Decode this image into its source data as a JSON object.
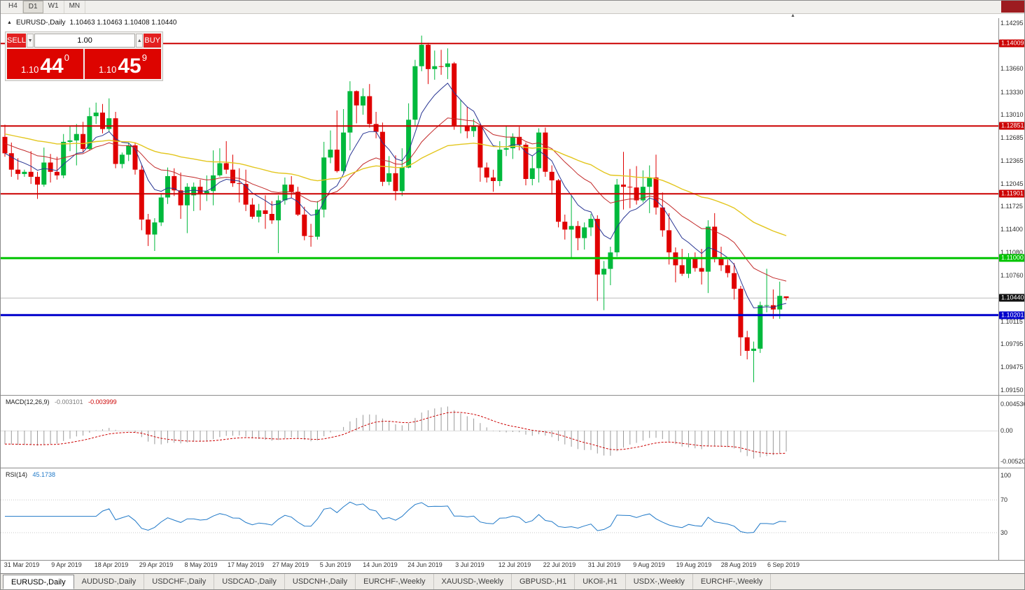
{
  "window": {
    "timeframes": [
      "H4",
      "D1",
      "W1",
      "MN"
    ],
    "active_timeframe": "D1"
  },
  "chart_header": {
    "symbol": "EURUSD-,Daily",
    "ohlc": "1.10463 1.10463 1.10408 1.10440"
  },
  "trade_panel": {
    "sell_label": "SELL",
    "buy_label": "BUY",
    "volume": "1.00",
    "sell_price": {
      "prefix": "1.10",
      "big": "44",
      "sup": "0"
    },
    "buy_price": {
      "prefix": "1.10",
      "big": "45",
      "sup": "9"
    }
  },
  "chart_data": {
    "type": "candlestick",
    "symbol": "EURUSD",
    "timeframe": "Daily",
    "current_price": 1.1044,
    "price_range": [
      1.0915,
      1.14295
    ],
    "up_color": "#00b93c",
    "down_color": "#e00000",
    "levels": [
      {
        "price": 1.14009,
        "color": "#cc0000",
        "width": 2
      },
      {
        "price": 1.12851,
        "color": "#cc0000",
        "width": 2
      },
      {
        "price": 1.11901,
        "color": "#cc0000",
        "width": 2
      },
      {
        "price": 1.11,
        "color": "#00c400",
        "width": 3
      },
      {
        "price": 1.10201,
        "color": "#0000cc",
        "width": 3
      }
    ],
    "price_axis": [
      {
        "text": "1.14295",
        "price": 1.14295,
        "style": "plain"
      },
      {
        "text": "1.14009",
        "price": 1.14009,
        "style": "tag",
        "bg": "#cc0000"
      },
      {
        "text": "1.13660",
        "price": 1.1366,
        "style": "plain"
      },
      {
        "text": "1.13330",
        "price": 1.1333,
        "style": "plain"
      },
      {
        "text": "1.13010",
        "price": 1.1301,
        "style": "plain"
      },
      {
        "text": "1.12851",
        "price": 1.12851,
        "style": "tag",
        "bg": "#cc0000"
      },
      {
        "text": "1.12685",
        "price": 1.12685,
        "style": "plain"
      },
      {
        "text": "1.12365",
        "price": 1.12365,
        "style": "plain"
      },
      {
        "text": "1.12045",
        "price": 1.12045,
        "style": "plain"
      },
      {
        "text": "1.11901",
        "price": 1.11901,
        "style": "tag",
        "bg": "#cc0000"
      },
      {
        "text": "1.11725",
        "price": 1.11725,
        "style": "plain"
      },
      {
        "text": "1.11400",
        "price": 1.114,
        "style": "plain"
      },
      {
        "text": "1.11080",
        "price": 1.1108,
        "style": "plain"
      },
      {
        "text": "1.11000",
        "price": 1.11,
        "style": "tag",
        "bg": "#00c400"
      },
      {
        "text": "1.10760",
        "price": 1.1076,
        "style": "plain"
      },
      {
        "text": "1.10440",
        "price": 1.1044,
        "style": "tag",
        "bg": "#111111"
      },
      {
        "text": "1.10201",
        "price": 1.10201,
        "style": "tag",
        "bg": "#0000cc"
      },
      {
        "text": "1.10115",
        "price": 1.10115,
        "style": "plain"
      },
      {
        "text": "1.09795",
        "price": 1.09795,
        "style": "plain"
      },
      {
        "text": "1.09475",
        "price": 1.09475,
        "style": "plain"
      },
      {
        "text": "1.09150",
        "price": 1.0915,
        "style": "plain"
      }
    ],
    "date_axis": [
      "31 Mar 2019",
      "9 Apr 2019",
      "18 Apr 2019",
      "29 Apr 2019",
      "8 May 2019",
      "17 May 2019",
      "27 May 2019",
      "5 Jun 2019",
      "14 Jun 2019",
      "24 Jun 2019",
      "3 Jul 2019",
      "12 Jul 2019",
      "22 Jul 2019",
      "31 Jul 2019",
      "9 Aug 2019",
      "19 Aug 2019",
      "28 Aug 2019",
      "6 Sep 2019"
    ],
    "candles": [
      [
        1.127,
        1.1287,
        1.1242,
        1.1247
      ],
      [
        1.1247,
        1.1262,
        1.1214,
        1.1224
      ],
      [
        1.1224,
        1.124,
        1.121,
        1.1218
      ],
      [
        1.1218,
        1.1224,
        1.1214,
        1.1221
      ],
      [
        1.1221,
        1.125,
        1.1204,
        1.1214
      ],
      [
        1.1214,
        1.1221,
        1.1183,
        1.1203
      ],
      [
        1.1203,
        1.1255,
        1.12,
        1.1234
      ],
      [
        1.1234,
        1.1246,
        1.1206,
        1.1221
      ],
      [
        1.1221,
        1.1242,
        1.121,
        1.1216
      ],
      [
        1.1216,
        1.1274,
        1.1212,
        1.1263
      ],
      [
        1.1263,
        1.1285,
        1.125,
        1.1265
      ],
      [
        1.1265,
        1.1288,
        1.123,
        1.1274
      ],
      [
        1.1274,
        1.1291,
        1.1248,
        1.1253
      ],
      [
        1.1253,
        1.1311,
        1.1251,
        1.1299
      ],
      [
        1.1299,
        1.1318,
        1.1288,
        1.1304
      ],
      [
        1.1304,
        1.1316,
        1.1275,
        1.1281
      ],
      [
        1.1281,
        1.1324,
        1.1277,
        1.1296
      ],
      [
        1.1296,
        1.1305,
        1.1226,
        1.1232
      ],
      [
        1.1232,
        1.1248,
        1.1226,
        1.1245
      ],
      [
        1.1245,
        1.1262,
        1.1236,
        1.1258
      ],
      [
        1.1258,
        1.1262,
        1.1217,
        1.1224
      ],
      [
        1.1224,
        1.123,
        1.1139,
        1.1154
      ],
      [
        1.1154,
        1.1162,
        1.1117,
        1.1133
      ],
      [
        1.1133,
        1.1156,
        1.111,
        1.115
      ],
      [
        1.115,
        1.119,
        1.1145,
        1.1185
      ],
      [
        1.1185,
        1.1227,
        1.1176,
        1.1215
      ],
      [
        1.1215,
        1.1226,
        1.1187,
        1.1195
      ],
      [
        1.1195,
        1.122,
        1.1155,
        1.1174
      ],
      [
        1.1174,
        1.1205,
        1.1135,
        1.12
      ],
      [
        1.1188,
        1.1206,
        1.1166,
        1.12
      ],
      [
        1.12,
        1.121,
        1.1167,
        1.119
      ],
      [
        1.119,
        1.1216,
        1.118,
        1.1194
      ],
      [
        1.1194,
        1.1251,
        1.1174,
        1.1216
      ],
      [
        1.1216,
        1.1254,
        1.1214,
        1.1233
      ],
      [
        1.1233,
        1.1264,
        1.1218,
        1.1224
      ],
      [
        1.1224,
        1.1245,
        1.12,
        1.1205
      ],
      [
        1.1205,
        1.1226,
        1.1178,
        1.1204
      ],
      [
        1.1204,
        1.1224,
        1.1166,
        1.1175
      ],
      [
        1.1175,
        1.1184,
        1.1155,
        1.1158
      ],
      [
        1.1158,
        1.1176,
        1.115,
        1.1167
      ],
      [
        1.1167,
        1.1188,
        1.1141,
        1.1162
      ],
      [
        1.1162,
        1.118,
        1.1148,
        1.1153
      ],
      [
        1.1153,
        1.1188,
        1.1107,
        1.1181
      ],
      [
        1.1181,
        1.1213,
        1.1175,
        1.1203
      ],
      [
        1.1203,
        1.1215,
        1.1184,
        1.1193
      ],
      [
        1.1193,
        1.12,
        1.1159,
        1.1161
      ],
      [
        1.1161,
        1.1172,
        1.1125,
        1.1131
      ],
      [
        1.1131,
        1.1148,
        1.1116,
        1.113
      ],
      [
        1.113,
        1.118,
        1.1126,
        1.1168
      ],
      [
        1.1168,
        1.1263,
        1.1157,
        1.1241
      ],
      [
        1.1241,
        1.1279,
        1.1233,
        1.1252
      ],
      [
        1.1252,
        1.1307,
        1.122,
        1.1222
      ],
      [
        1.1222,
        1.1309,
        1.1219,
        1.1276
      ],
      [
        1.1276,
        1.1348,
        1.1251,
        1.1334
      ],
      [
        1.1334,
        1.1335,
        1.1289,
        1.1314
      ],
      [
        1.1314,
        1.1338,
        1.1301,
        1.1327
      ],
      [
        1.1327,
        1.1344,
        1.1283,
        1.1288
      ],
      [
        1.1288,
        1.1305,
        1.1268,
        1.1277
      ],
      [
        1.1277,
        1.129,
        1.1201,
        1.1207
      ],
      [
        1.1207,
        1.1243,
        1.1202,
        1.1219
      ],
      [
        1.1219,
        1.1244,
        1.1181,
        1.1194
      ],
      [
        1.1194,
        1.1254,
        1.1187,
        1.1227
      ],
      [
        1.1227,
        1.1317,
        1.1226,
        1.1294
      ],
      [
        1.1294,
        1.1378,
        1.1286,
        1.1369
      ],
      [
        1.1369,
        1.1412,
        1.1362,
        1.1399
      ],
      [
        1.1399,
        1.1402,
        1.1344,
        1.1365
      ],
      [
        1.1365,
        1.1391,
        1.135,
        1.1369
      ],
      [
        1.1369,
        1.1392,
        1.1357,
        1.1368
      ],
      [
        1.1368,
        1.1394,
        1.1351,
        1.1373
      ],
      [
        1.1373,
        1.1375,
        1.128,
        1.1285
      ],
      [
        1.1285,
        1.1322,
        1.1275,
        1.1286
      ],
      [
        1.1286,
        1.1312,
        1.1268,
        1.1278
      ],
      [
        1.1278,
        1.1295,
        1.127,
        1.1285
      ],
      [
        1.1285,
        1.1289,
        1.1207,
        1.1227
      ],
      [
        1.1227,
        1.1234,
        1.1206,
        1.1213
      ],
      [
        1.1213,
        1.1224,
        1.1193,
        1.1208
      ],
      [
        1.1208,
        1.1264,
        1.1201,
        1.1252
      ],
      [
        1.1252,
        1.1286,
        1.1243,
        1.1254
      ],
      [
        1.1254,
        1.1275,
        1.1239,
        1.127
      ],
      [
        1.127,
        1.1284,
        1.1251,
        1.1259
      ],
      [
        1.1259,
        1.1262,
        1.1202,
        1.1211
      ],
      [
        1.1211,
        1.1243,
        1.1202,
        1.1226
      ],
      [
        1.1226,
        1.1282,
        1.1206,
        1.1276
      ],
      [
        1.1276,
        1.1283,
        1.1214,
        1.1221
      ],
      [
        1.1221,
        1.123,
        1.1189,
        1.1209
      ],
      [
        1.1209,
        1.1211,
        1.1143,
        1.1151
      ],
      [
        1.1151,
        1.1161,
        1.1126,
        1.114
      ],
      [
        1.114,
        1.1187,
        1.1101,
        1.1145
      ],
      [
        1.1145,
        1.1152,
        1.1111,
        1.1128
      ],
      [
        1.1128,
        1.115,
        1.1112,
        1.1143
      ],
      [
        1.1143,
        1.1162,
        1.1131,
        1.1155
      ],
      [
        1.1155,
        1.116,
        1.104,
        1.1077
      ],
      [
        1.1077,
        1.1096,
        1.1027,
        1.1085
      ],
      [
        1.1085,
        1.1116,
        1.1062,
        1.1108
      ],
      [
        1.1108,
        1.1211,
        1.1102,
        1.1203
      ],
      [
        1.1203,
        1.1249,
        1.1168,
        1.12
      ],
      [
        1.12,
        1.1225,
        1.117,
        1.1199
      ],
      [
        1.1199,
        1.1229,
        1.1175,
        1.1181
      ],
      [
        1.1181,
        1.1223,
        1.1178,
        1.12
      ],
      [
        1.12,
        1.123,
        1.1163,
        1.1213
      ],
      [
        1.1213,
        1.1245,
        1.1161,
        1.1171
      ],
      [
        1.1171,
        1.1192,
        1.113,
        1.1139
      ],
      [
        1.1139,
        1.1163,
        1.1091,
        1.1108
      ],
      [
        1.1108,
        1.1115,
        1.1066,
        1.109
      ],
      [
        1.109,
        1.1113,
        1.1075,
        1.1078
      ],
      [
        1.1078,
        1.1107,
        1.1072,
        1.1099
      ],
      [
        1.1099,
        1.1108,
        1.1081,
        1.1086
      ],
      [
        1.1086,
        1.1113,
        1.1063,
        1.1081
      ],
      [
        1.1081,
        1.1153,
        1.1051,
        1.1144
      ],
      [
        1.1144,
        1.1163,
        1.1094,
        1.1101
      ],
      [
        1.1101,
        1.1116,
        1.1082,
        1.109
      ],
      [
        1.109,
        1.1098,
        1.1073,
        1.1079
      ],
      [
        1.1079,
        1.1093,
        1.1042,
        1.1057
      ],
      [
        1.1057,
        1.1061,
        1.0963,
        1.0989
      ],
      [
        1.0989,
        1.0998,
        1.0958,
        1.097
      ],
      [
        1.097,
        1.0983,
        1.0926,
        1.0973
      ],
      [
        1.0973,
        1.1039,
        1.0967,
        1.1034
      ],
      [
        1.1034,
        1.1085,
        1.1024,
        1.1034
      ],
      [
        1.1034,
        1.1056,
        1.1015,
        1.1028
      ],
      [
        1.1028,
        1.1067,
        1.1015,
        1.1047
      ],
      [
        1.10463,
        1.10463,
        1.10408,
        1.1044
      ]
    ],
    "moving_averages": [
      {
        "period": 8,
        "color": "#283593",
        "width": 1,
        "seed_offset": 0.0
      },
      {
        "period": 21,
        "color": "#c22828",
        "width": 1,
        "seed_offset": 0.0015
      },
      {
        "period": 55,
        "color": "#e3c61e",
        "width": 1.4,
        "seed_offset": 0.0028
      }
    ],
    "macd": {
      "label": "MACD(12,26,9)",
      "value_main": "-0.003101",
      "value_signal": "-0.003999",
      "axis_labels": [
        "0.004536",
        "0.00",
        "-0.005205"
      ],
      "axis_max": 0.004536,
      "axis_min": -0.005205,
      "fast": 12,
      "slow": 26,
      "signal": 9
    },
    "rsi": {
      "label": "RSI(14)",
      "value": "45.1738",
      "axis_labels": [
        "100",
        "70",
        "30"
      ],
      "period": 14,
      "levels": [
        70,
        30
      ]
    }
  },
  "tabs": [
    {
      "label": "EURUSD-,Daily",
      "active": true
    },
    {
      "label": "AUDUSD-,Daily",
      "active": false
    },
    {
      "label": "USDCHF-,Daily",
      "active": false
    },
    {
      "label": "USDCAD-,Daily",
      "active": false
    },
    {
      "label": "USDCNH-,Daily",
      "active": false
    },
    {
      "label": "EURCHF-,Weekly",
      "active": false
    },
    {
      "label": "XAUUSD-,Weekly",
      "active": false
    },
    {
      "label": "GBPUSD-,H1",
      "active": false
    },
    {
      "label": "UKOil-,H1",
      "active": false
    },
    {
      "label": "USDX-,Weekly",
      "active": false
    },
    {
      "label": "EURCHF-,Weekly",
      "active": false
    }
  ]
}
